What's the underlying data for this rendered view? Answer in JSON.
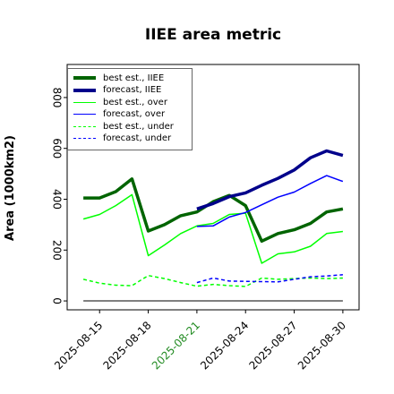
{
  "chart_data": {
    "type": "line",
    "title": "IIEE area metric",
    "ylabel": "Area (1000km2)",
    "xlabel": "",
    "ylim": [
      -35,
      930
    ],
    "xlim": [
      "2025-08-13",
      "2025-08-31"
    ],
    "grid": false,
    "legend_position": "top-left",
    "x_ticks": [
      {
        "label": "2025-08-15",
        "date": "2025-08-15",
        "color": "#000000"
      },
      {
        "label": "2025-08-18",
        "date": "2025-08-18",
        "color": "#000000"
      },
      {
        "label": "2025-08-21",
        "date": "2025-08-21",
        "color": "#228B22"
      },
      {
        "label": "2025-08-24",
        "date": "2025-08-24",
        "color": "#000000"
      },
      {
        "label": "2025-08-27",
        "date": "2025-08-27",
        "color": "#000000"
      },
      {
        "label": "2025-08-30",
        "date": "2025-08-30",
        "color": "#000000"
      }
    ],
    "y_ticks": [
      0,
      200,
      400,
      600,
      800
    ],
    "series": [
      {
        "name": "best est., IIEE",
        "color": "#006400",
        "style": "solid",
        "width": "thick",
        "points": [
          [
            "2025-08-14",
            405
          ],
          [
            "2025-08-15",
            405
          ],
          [
            "2025-08-16",
            430
          ],
          [
            "2025-08-17",
            480
          ],
          [
            "2025-08-18",
            275
          ],
          [
            "2025-08-19",
            300
          ],
          [
            "2025-08-20",
            335
          ],
          [
            "2025-08-21",
            350
          ],
          [
            "2025-08-22",
            390
          ],
          [
            "2025-08-23",
            415
          ],
          [
            "2025-08-24",
            375
          ],
          [
            "2025-08-25",
            235
          ],
          [
            "2025-08-26",
            265
          ],
          [
            "2025-08-27",
            280
          ],
          [
            "2025-08-28",
            305
          ],
          [
            "2025-08-29",
            350
          ],
          [
            "2025-08-30",
            362
          ]
        ]
      },
      {
        "name": "forecast, IIEE",
        "color": "#00008B",
        "style": "solid",
        "width": "thick",
        "points": [
          [
            "2025-08-21",
            362
          ],
          [
            "2025-08-22",
            383
          ],
          [
            "2025-08-23",
            410
          ],
          [
            "2025-08-24",
            425
          ],
          [
            "2025-08-25",
            455
          ],
          [
            "2025-08-26",
            482
          ],
          [
            "2025-08-27",
            515
          ],
          [
            "2025-08-28",
            563
          ],
          [
            "2025-08-29",
            590
          ],
          [
            "2025-08-30",
            572
          ]
        ]
      },
      {
        "name": "best est., over",
        "color": "#00FF00",
        "style": "solid",
        "width": "thin",
        "points": [
          [
            "2025-08-14",
            322
          ],
          [
            "2025-08-15",
            340
          ],
          [
            "2025-08-16",
            375
          ],
          [
            "2025-08-17",
            418
          ],
          [
            "2025-08-18",
            178
          ],
          [
            "2025-08-19",
            220
          ],
          [
            "2025-08-20",
            265
          ],
          [
            "2025-08-21",
            295
          ],
          [
            "2025-08-22",
            305
          ],
          [
            "2025-08-23",
            340
          ],
          [
            "2025-08-24",
            345
          ],
          [
            "2025-08-25",
            148
          ],
          [
            "2025-08-26",
            185
          ],
          [
            "2025-08-27",
            193
          ],
          [
            "2025-08-28",
            215
          ],
          [
            "2025-08-29",
            265
          ],
          [
            "2025-08-30",
            273
          ]
        ]
      },
      {
        "name": "forecast, over",
        "color": "#0000FF",
        "style": "solid",
        "width": "thin",
        "points": [
          [
            "2025-08-21",
            293
          ],
          [
            "2025-08-22",
            295
          ],
          [
            "2025-08-23",
            330
          ],
          [
            "2025-08-24",
            348
          ],
          [
            "2025-08-25",
            378
          ],
          [
            "2025-08-26",
            408
          ],
          [
            "2025-08-27",
            428
          ],
          [
            "2025-08-28",
            462
          ],
          [
            "2025-08-29",
            493
          ],
          [
            "2025-08-30",
            470
          ]
        ]
      },
      {
        "name": "best est., under",
        "color": "#00FF00",
        "style": "dashed",
        "width": "thin",
        "points": [
          [
            "2025-08-14",
            85
          ],
          [
            "2025-08-15",
            70
          ],
          [
            "2025-08-16",
            62
          ],
          [
            "2025-08-17",
            60
          ],
          [
            "2025-08-18",
            100
          ],
          [
            "2025-08-19",
            88
          ],
          [
            "2025-08-20",
            72
          ],
          [
            "2025-08-21",
            58
          ],
          [
            "2025-08-22",
            65
          ],
          [
            "2025-08-23",
            60
          ],
          [
            "2025-08-24",
            57
          ],
          [
            "2025-08-25",
            90
          ],
          [
            "2025-08-26",
            85
          ],
          [
            "2025-08-27",
            88
          ],
          [
            "2025-08-28",
            90
          ],
          [
            "2025-08-29",
            88
          ],
          [
            "2025-08-30",
            90
          ]
        ]
      },
      {
        "name": "forecast, under",
        "color": "#0000FF",
        "style": "dashed",
        "width": "thin",
        "points": [
          [
            "2025-08-21",
            72
          ],
          [
            "2025-08-22",
            90
          ],
          [
            "2025-08-23",
            78
          ],
          [
            "2025-08-24",
            77
          ],
          [
            "2025-08-25",
            76
          ],
          [
            "2025-08-26",
            75
          ],
          [
            "2025-08-27",
            85
          ],
          [
            "2025-08-28",
            95
          ],
          [
            "2025-08-29",
            98
          ],
          [
            "2025-08-30",
            103
          ]
        ]
      }
    ],
    "baseline": {
      "color": "#000000",
      "start": "2025-08-14",
      "end": "2025-08-30",
      "value": 0
    }
  }
}
